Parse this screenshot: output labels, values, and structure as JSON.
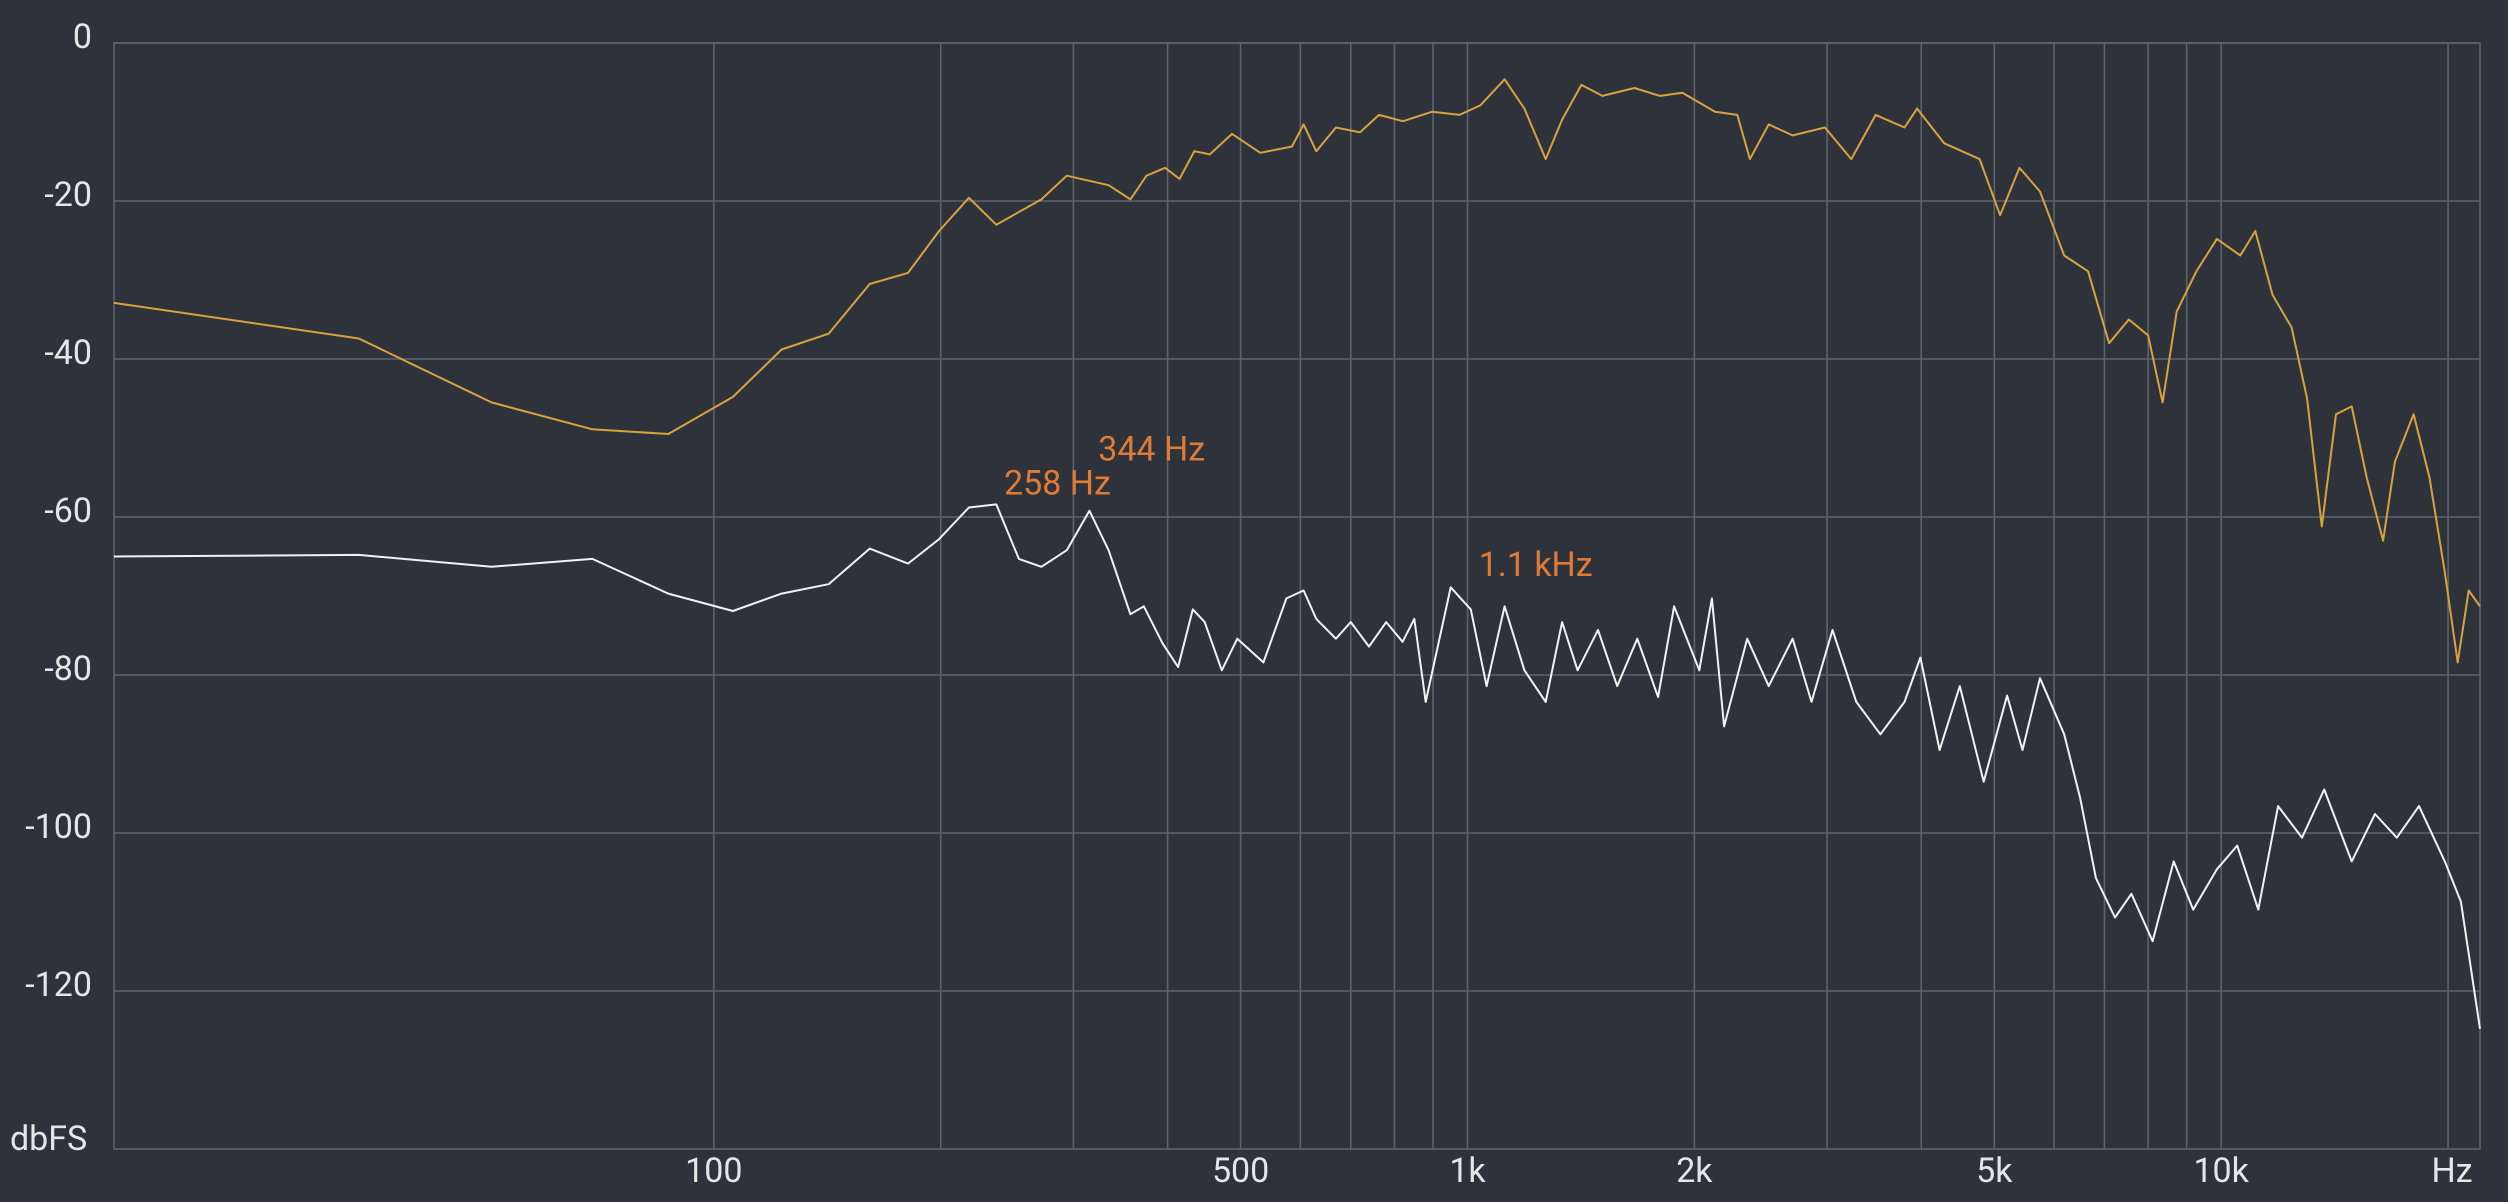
{
  "chart_data": {
    "type": "line",
    "log_x": true,
    "grid": true,
    "xlim": [
      16,
      22050
    ],
    "ylim": [
      -140,
      0
    ],
    "xticks": [
      {
        "value": 100,
        "label": "100"
      },
      {
        "value": 500,
        "label": "500"
      },
      {
        "value": 1000,
        "label": "1k"
      },
      {
        "value": 2000,
        "label": "2k"
      },
      {
        "value": 5000,
        "label": "5k"
      },
      {
        "value": 10000,
        "label": "10k"
      }
    ],
    "xminor": [
      200,
      300,
      400,
      600,
      700,
      800,
      900,
      3000,
      4000,
      6000,
      7000,
      8000,
      9000,
      20000
    ],
    "yticks": [
      0,
      -20,
      -40,
      -60,
      -80,
      -100,
      -120
    ],
    "xlabel": "Hz",
    "ylabel": "dbFS",
    "annotations": [
      {
        "text": "258 Hz",
        "x": 258,
        "y": -56,
        "color": "#e07b35"
      },
      {
        "text": "344 Hz",
        "x": 344,
        "y": -51.7,
        "color": "#e07b35"
      },
      {
        "text": "1.1  kHz",
        "x": 1100,
        "y": -66.3,
        "color": "#e07b35"
      }
    ],
    "series": [
      {
        "color": "#d9a23e",
        "x": [
          16,
          33.8,
          50.7,
          69,
          87,
          106,
          123,
          142,
          161,
          181,
          199,
          218,
          237,
          272,
          294,
          334,
          357,
          375,
          397,
          415,
          434,
          455,
          487,
          531,
          585,
          606,
          630,
          669,
          720,
          763,
          821,
          898,
          976,
          1040,
          1120,
          1190,
          1270,
          1335,
          1416,
          1510,
          1665,
          1800,
          1928,
          2130,
          2280,
          2370,
          2510,
          2700,
          2980,
          3230,
          3480,
          3800,
          3950,
          4290,
          4780,
          5090,
          5400,
          5750,
          6190,
          6660,
          7100,
          7540,
          8000,
          8360,
          8730,
          9270,
          9870,
          10600,
          11100,
          11700,
          12400,
          13000,
          13600,
          14200,
          14900,
          15600,
          16400,
          17000,
          18000,
          18900,
          19800,
          20600,
          21300,
          22050
        ],
        "values": [
          -32.9,
          -37.4,
          -45.5,
          -48.9,
          -49.5,
          -44.8,
          -38.8,
          -36.8,
          -30.5,
          -29.1,
          -23.8,
          -19.6,
          -23,
          -19.8,
          -16.8,
          -18,
          -19.8,
          -16.8,
          -15.8,
          -17.2,
          -13.7,
          -14.1,
          -11.5,
          -13.9,
          -13.1,
          -10.3,
          -13.7,
          -10.7,
          -11.3,
          -9.1,
          -9.9,
          -8.7,
          -9.1,
          -7.9,
          -4.6,
          -8.3,
          -14.7,
          -9.7,
          -5.3,
          -6.7,
          -5.7,
          -6.7,
          -6.3,
          -8.7,
          -9.1,
          -14.7,
          -10.3,
          -11.7,
          -10.7,
          -14.7,
          -9.1,
          -10.7,
          -8.3,
          -12.7,
          -14.7,
          -21.8,
          -15.8,
          -18.8,
          -26.9,
          -28.9,
          -38,
          -35,
          -37,
          -45.5,
          -34,
          -28.9,
          -24.8,
          -26.9,
          -23.8,
          -31.9,
          -36,
          -45,
          -61.2,
          -47,
          -46,
          -55,
          -63,
          -53,
          -47,
          -55,
          -67,
          -78.4,
          -69.3,
          -71.3
        ]
      },
      {
        "color": "#f2f2f2",
        "x": [
          16,
          33.8,
          50.7,
          69,
          87,
          106,
          123,
          142,
          161,
          181,
          199,
          218,
          237,
          254,
          272,
          294,
          315,
          334,
          357,
          372,
          394,
          413,
          432,
          448,
          472,
          495,
          536,
          575,
          606,
          630,
          669,
          700,
          740,
          780,
          820,
          850,
          880,
          950,
          1010,
          1060,
          1120,
          1190,
          1270,
          1335,
          1400,
          1490,
          1580,
          1680,
          1790,
          1880,
          2030,
          2110,
          2190,
          2350,
          2510,
          2700,
          2860,
          3050,
          3280,
          3530,
          3800,
          3990,
          4230,
          4500,
          4840,
          5200,
          5450,
          5750,
          6190,
          6500,
          6820,
          7230,
          7600,
          8110,
          8650,
          9180,
          9870,
          10500,
          11200,
          11900,
          12800,
          13700,
          14900,
          16000,
          17100,
          18300,
          19800,
          20800,
          22050
        ],
        "values": [
          -65,
          -64.8,
          -66.3,
          -65.3,
          -69.7,
          -71.9,
          -69.7,
          -68.5,
          -64,
          -65.9,
          -62.8,
          -58.8,
          -58.4,
          -65.3,
          -66.3,
          -64.2,
          -59.2,
          -64.2,
          -72.3,
          -71.3,
          -76,
          -79,
          -71.7,
          -73.3,
          -79.4,
          -75.4,
          -78.4,
          -70.3,
          -69.3,
          -72.9,
          -75.4,
          -73.3,
          -76.4,
          -73.3,
          -75.8,
          -72.9,
          -83.4,
          -68.9,
          -71.7,
          -81.4,
          -71.3,
          -79.4,
          -83.4,
          -73.3,
          -79.4,
          -74.3,
          -81.4,
          -75.4,
          -82.8,
          -71.3,
          -79.4,
          -70.3,
          -86.5,
          -75.4,
          -81.4,
          -75.4,
          -83.4,
          -74.3,
          -83.4,
          -87.5,
          -83.4,
          -77.8,
          -89.5,
          -81.4,
          -93.5,
          -82.6,
          -89.5,
          -80.4,
          -87.5,
          -95.6,
          -105.7,
          -110.7,
          -107.7,
          -113.7,
          -103.6,
          -109.7,
          -104.6,
          -101.6,
          -109.7,
          -96.6,
          -100.6,
          -94.5,
          -103.6,
          -97.6,
          -100.6,
          -96.6,
          -103.6,
          -108.7,
          -124.8
        ]
      }
    ]
  }
}
